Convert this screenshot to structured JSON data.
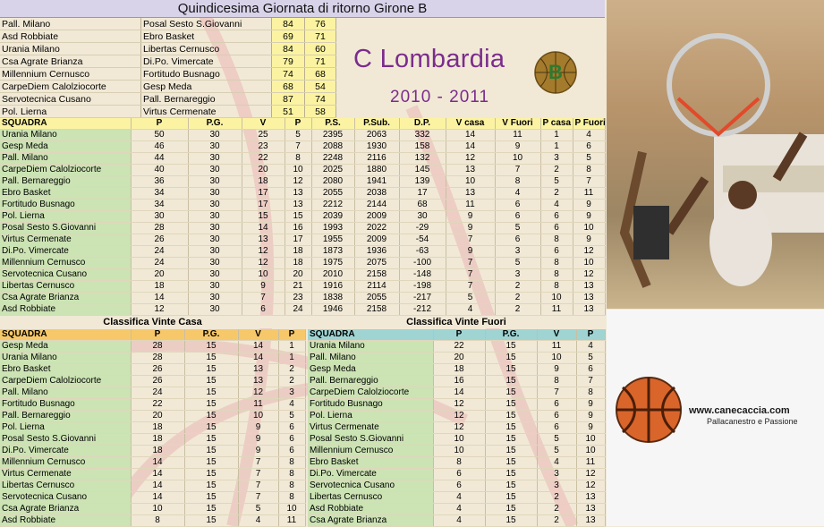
{
  "title": "Quindicesima Giornata di ritorno Girone B",
  "results": [
    {
      "home": "Pall. Milano",
      "away": "Posal Sesto S.Giovanni",
      "s1": "84",
      "s2": "76"
    },
    {
      "home": "Asd Robbiate",
      "away": "Ebro Basket",
      "s1": "69",
      "s2": "71"
    },
    {
      "home": "Urania Milano",
      "away": "Libertas Cernusco",
      "s1": "84",
      "s2": "60"
    },
    {
      "home": "Csa Agrate Brianza",
      "away": "Di.Po. Vimercate",
      "s1": "79",
      "s2": "71"
    },
    {
      "home": "Millennium Cernusco",
      "away": "Fortitudo Busnago",
      "s1": "74",
      "s2": "68"
    },
    {
      "home": "CarpeDiem Calolziocorte",
      "away": "Gesp Meda",
      "s1": "68",
      "s2": "54"
    },
    {
      "home": "Servotecnica Cusano",
      "away": "Pall. Bernareggio",
      "s1": "87",
      "s2": "74"
    },
    {
      "home": "Pol. Lierna",
      "away": "Virtus Cermenate",
      "s1": "51",
      "s2": "58"
    }
  ],
  "logo": {
    "name": "C Lombardia",
    "season": "2010 - 2011",
    "badge": "B"
  },
  "standings": {
    "headers": [
      "SQUADRA",
      "P",
      "P.G.",
      "V",
      "P",
      "P.S.",
      "P.Sub.",
      "D.P.",
      "V casa",
      "V Fuori",
      "P casa",
      "P Fuori"
    ],
    "rows": [
      [
        "Urania Milano",
        "50",
        "30",
        "25",
        "5",
        "2395",
        "2063",
        "332",
        "14",
        "11",
        "1",
        "4"
      ],
      [
        "Gesp Meda",
        "46",
        "30",
        "23",
        "7",
        "2088",
        "1930",
        "158",
        "14",
        "9",
        "1",
        "6"
      ],
      [
        "Pall. Milano",
        "44",
        "30",
        "22",
        "8",
        "2248",
        "2116",
        "132",
        "12",
        "10",
        "3",
        "5"
      ],
      [
        "CarpeDiem Calolziocorte",
        "40",
        "30",
        "20",
        "10",
        "2025",
        "1880",
        "145",
        "13",
        "7",
        "2",
        "8"
      ],
      [
        "Pall. Bernareggio",
        "36",
        "30",
        "18",
        "12",
        "2080",
        "1941",
        "139",
        "10",
        "8",
        "5",
        "7"
      ],
      [
        "Ebro Basket",
        "34",
        "30",
        "17",
        "13",
        "2055",
        "2038",
        "17",
        "13",
        "4",
        "2",
        "11"
      ],
      [
        "Fortitudo Busnago",
        "34",
        "30",
        "17",
        "13",
        "2212",
        "2144",
        "68",
        "11",
        "6",
        "4",
        "9"
      ],
      [
        "Pol. Lierna",
        "30",
        "30",
        "15",
        "15",
        "2039",
        "2009",
        "30",
        "9",
        "6",
        "6",
        "9"
      ],
      [
        "Posal Sesto S.Giovanni",
        "28",
        "30",
        "14",
        "16",
        "1993",
        "2022",
        "-29",
        "9",
        "5",
        "6",
        "10"
      ],
      [
        "Virtus Cermenate",
        "26",
        "30",
        "13",
        "17",
        "1955",
        "2009",
        "-54",
        "7",
        "6",
        "8",
        "9"
      ],
      [
        "Di.Po. Vimercate",
        "24",
        "30",
        "12",
        "18",
        "1873",
        "1936",
        "-63",
        "9",
        "3",
        "6",
        "12"
      ],
      [
        "Millennium Cernusco",
        "24",
        "30",
        "12",
        "18",
        "1975",
        "2075",
        "-100",
        "7",
        "5",
        "8",
        "10"
      ],
      [
        "Servotecnica Cusano",
        "20",
        "30",
        "10",
        "20",
        "2010",
        "2158",
        "-148",
        "7",
        "3",
        "8",
        "12"
      ],
      [
        "Libertas Cernusco",
        "18",
        "30",
        "9",
        "21",
        "1916",
        "2114",
        "-198",
        "7",
        "2",
        "8",
        "13"
      ],
      [
        "Csa Agrate Brianza",
        "14",
        "30",
        "7",
        "23",
        "1838",
        "2055",
        "-217",
        "5",
        "2",
        "10",
        "13"
      ],
      [
        "Asd Robbiate",
        "12",
        "30",
        "6",
        "24",
        "1946",
        "2158",
        "-212",
        "4",
        "2",
        "11",
        "13"
      ]
    ]
  },
  "home_table": {
    "title": "Classifica Vinte Casa",
    "headers": [
      "SQUADRA",
      "P",
      "P.G.",
      "V",
      "P"
    ],
    "rows": [
      [
        "Gesp Meda",
        "28",
        "15",
        "14",
        "1"
      ],
      [
        "Urania Milano",
        "28",
        "15",
        "14",
        "1"
      ],
      [
        "Ebro Basket",
        "26",
        "15",
        "13",
        "2"
      ],
      [
        "CarpeDiem Calolziocorte",
        "26",
        "15",
        "13",
        "2"
      ],
      [
        "Pall. Milano",
        "24",
        "15",
        "12",
        "3"
      ],
      [
        "Fortitudo Busnago",
        "22",
        "15",
        "11",
        "4"
      ],
      [
        "Pall. Bernareggio",
        "20",
        "15",
        "10",
        "5"
      ],
      [
        "Pol. Lierna",
        "18",
        "15",
        "9",
        "6"
      ],
      [
        "Posal Sesto S.Giovanni",
        "18",
        "15",
        "9",
        "6"
      ],
      [
        "Di.Po. Vimercate",
        "18",
        "15",
        "9",
        "6"
      ],
      [
        "Millennium Cernusco",
        "14",
        "15",
        "7",
        "8"
      ],
      [
        "Virtus Cermenate",
        "14",
        "15",
        "7",
        "8"
      ],
      [
        "Libertas Cernusco",
        "14",
        "15",
        "7",
        "8"
      ],
      [
        "Servotecnica Cusano",
        "14",
        "15",
        "7",
        "8"
      ],
      [
        "Csa Agrate Brianza",
        "10",
        "15",
        "5",
        "10"
      ],
      [
        "Asd Robbiate",
        "8",
        "15",
        "4",
        "11"
      ]
    ]
  },
  "away_table": {
    "title": "Classifica Vinte Fuori",
    "headers": [
      "SQUADRA",
      "P",
      "P.G.",
      "V",
      "P"
    ],
    "rows": [
      [
        "Urania Milano",
        "22",
        "15",
        "11",
        "4"
      ],
      [
        "Pall. Milano",
        "20",
        "15",
        "10",
        "5"
      ],
      [
        "Gesp Meda",
        "18",
        "15",
        "9",
        "6"
      ],
      [
        "Pall. Bernareggio",
        "16",
        "15",
        "8",
        "7"
      ],
      [
        "CarpeDiem Calolziocorte",
        "14",
        "15",
        "7",
        "8"
      ],
      [
        "Fortitudo Busnago",
        "12",
        "15",
        "6",
        "9"
      ],
      [
        "Pol. Lierna",
        "12",
        "15",
        "6",
        "9"
      ],
      [
        "Virtus Cermenate",
        "12",
        "15",
        "6",
        "9"
      ],
      [
        "Posal Sesto S.Giovanni",
        "10",
        "15",
        "5",
        "10"
      ],
      [
        "Millennium Cernusco",
        "10",
        "15",
        "5",
        "10"
      ],
      [
        "Ebro Basket",
        "8",
        "15",
        "4",
        "11"
      ],
      [
        "Di.Po. Vimercate",
        "6",
        "15",
        "3",
        "12"
      ],
      [
        "Servotecnica Cusano",
        "6",
        "15",
        "3",
        "12"
      ],
      [
        "Libertas Cernusco",
        "4",
        "15",
        "2",
        "13"
      ],
      [
        "Asd Robbiate",
        "4",
        "15",
        "2",
        "13"
      ],
      [
        "Csa Agrate Brianza",
        "4",
        "15",
        "2",
        "13"
      ]
    ]
  },
  "ad": {
    "url": "www.canecaccia.com",
    "tagline": "Pallacanestro e Passione"
  },
  "colors": {
    "team_cell": "#cce3b4",
    "score_cell": "#fbf3a1",
    "home_header": "#f7c86a",
    "away_header": "#9fd4d3",
    "logo_text": "#7b2c8d"
  }
}
